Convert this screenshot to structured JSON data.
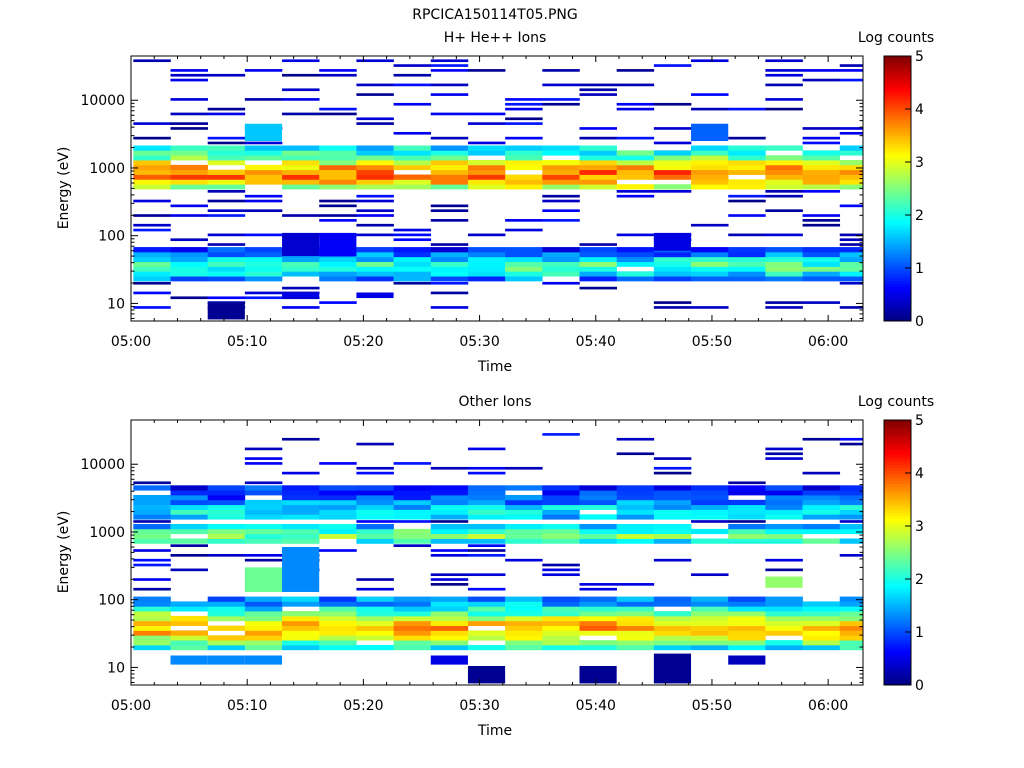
{
  "figure": {
    "title": "RPCICA150114T05.PNG"
  },
  "colorscale": {
    "name": "jet",
    "stops": [
      "#00007f",
      "#0000ff",
      "#007fff",
      "#00ffff",
      "#7fff7f",
      "#ffff00",
      "#ff7f00",
      "#ff0000",
      "#7f0000"
    ]
  },
  "chart_data": [
    {
      "type": "heatmap",
      "title": "H+ He++ Ions",
      "xlabel": "Time",
      "ylabel": "Energy (eV)",
      "yscale": "log",
      "ylim": [
        5.5,
        45000
      ],
      "xlim_minutes": [
        0,
        63
      ],
      "x_ticks": [
        "05:00",
        "05:10",
        "05:20",
        "05:30",
        "05:40",
        "05:50",
        "06:00"
      ],
      "y_ticks": [
        "10",
        "100",
        "1000",
        "10000"
      ],
      "colorbar": {
        "label": "Log counts",
        "range": [
          0,
          5
        ],
        "ticks": [
          "0",
          "1",
          "2",
          "3",
          "4",
          "5"
        ]
      },
      "time_bins_minutes": [
        0.2,
        3.4,
        6.6,
        9.8,
        13.0,
        16.2,
        19.4,
        22.6,
        25.8,
        29.0,
        32.2,
        35.4,
        38.6,
        41.8,
        45.0,
        48.2,
        51.4,
        54.6,
        57.8,
        61.0,
        63.0
      ],
      "profiles": [
        {
          "peak": 820,
          "width": 0.17,
          "max": 3.8,
          "floor": 1.6,
          "lo": 450,
          "hi": 2300
        },
        {
          "peak": 35,
          "width": 0.14,
          "max": 2.2,
          "floor": 0.4,
          "lo": 22,
          "hi": 65
        }
      ],
      "features": [
        {
          "bin": 2,
          "low": 5.8,
          "high": 10.5,
          "value": 0.1
        },
        {
          "bin": 4,
          "low": 12,
          "high": 14.5,
          "value": 0.5
        },
        {
          "bin": 6,
          "low": 12,
          "high": 14.5,
          "value": 0.5
        },
        {
          "bin": 4,
          "low": 50,
          "high": 110,
          "value": 0.4
        },
        {
          "bin": 5,
          "low": 50,
          "high": 110,
          "value": 0.6
        },
        {
          "bin": 14,
          "low": 60,
          "high": 110,
          "value": 0.5
        },
        {
          "bin": 3,
          "low": 2500,
          "high": 4500,
          "value": 1.6
        },
        {
          "bin": 15,
          "low": 2500,
          "high": 4500,
          "value": 1.1
        },
        {
          "bin": 20,
          "low": 9500,
          "high": 13000,
          "value": 0.6
        }
      ],
      "noise_seed": 7,
      "noise_density": 0.25,
      "noise_range": [
        8,
        42000
      ]
    },
    {
      "type": "heatmap",
      "title": "Other Ions",
      "xlabel": "Time",
      "ylabel": "Energy (eV)",
      "yscale": "log",
      "ylim": [
        5.5,
        45000
      ],
      "xlim_minutes": [
        0,
        63
      ],
      "x_ticks": [
        "05:00",
        "05:10",
        "05:20",
        "05:30",
        "05:40",
        "05:50",
        "06:00"
      ],
      "y_ticks": [
        "10",
        "100",
        "1000",
        "10000"
      ],
      "colorbar": {
        "label": "Log counts",
        "range": [
          0,
          5
        ],
        "ticks": [
          "0",
          "1",
          "2",
          "3",
          "4",
          "5"
        ]
      },
      "time_bins_minutes": [
        0.2,
        3.4,
        6.6,
        9.8,
        13.0,
        16.2,
        19.4,
        22.6,
        25.8,
        29.0,
        32.2,
        35.4,
        38.6,
        41.8,
        45.0,
        48.2,
        51.4,
        54.6,
        57.8,
        61.0,
        63.0
      ],
      "profiles": [
        {
          "peak": 38,
          "width": 0.2,
          "max": 3.5,
          "floor": 1.0,
          "lo": 18,
          "hi": 120
        },
        {
          "peak": 900,
          "width": 0.09,
          "max": 2.5,
          "floor": 1.0,
          "lo": 650,
          "hi": 1250
        },
        {
          "peak": 2000,
          "width": 0.12,
          "max": 1.8,
          "floor": 0.8,
          "lo": 1500,
          "hi": 4500
        }
      ],
      "features": [
        {
          "bin": 1,
          "low": 11,
          "high": 15,
          "value": 1.3
        },
        {
          "bin": 2,
          "low": 11,
          "high": 15,
          "value": 1.3
        },
        {
          "bin": 3,
          "low": 11,
          "high": 15,
          "value": 1.3
        },
        {
          "bin": 9,
          "low": 5.8,
          "high": 10.5,
          "value": 0.1
        },
        {
          "bin": 12,
          "low": 5.8,
          "high": 10.5,
          "value": 0.1
        },
        {
          "bin": 14,
          "low": 5.8,
          "high": 16,
          "value": 0.1
        },
        {
          "bin": 8,
          "low": 11,
          "high": 15,
          "value": 0.5
        },
        {
          "bin": 16,
          "low": 11,
          "high": 15,
          "value": 0.3
        },
        {
          "bin": 3,
          "low": 130,
          "high": 300,
          "value": 2.4
        },
        {
          "bin": 4,
          "low": 130,
          "high": 600,
          "value": 1.3
        },
        {
          "bin": 17,
          "low": 150,
          "high": 220,
          "value": 2.6
        }
      ],
      "noise_seed": 13,
      "noise_density": 0.2,
      "noise_range": [
        130,
        30000
      ]
    }
  ]
}
